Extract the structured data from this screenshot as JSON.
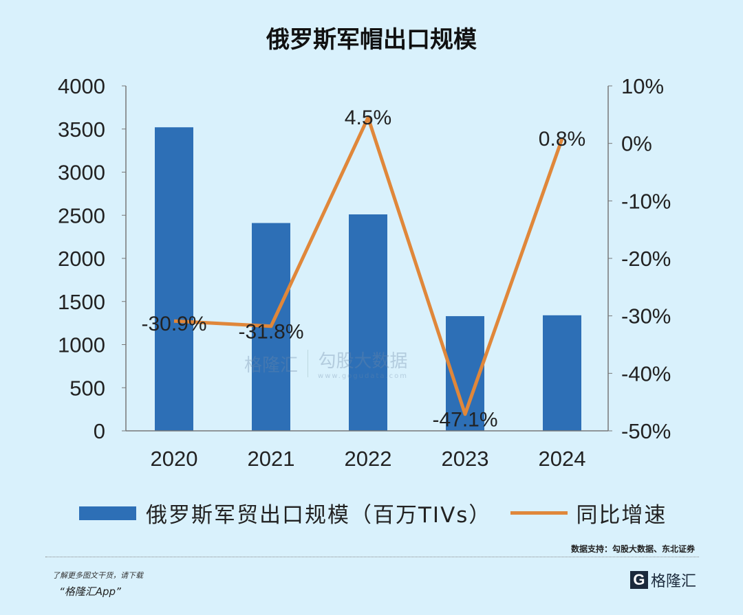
{
  "title": "俄罗斯军帽出口规模",
  "chart_data": {
    "type": "bar+line",
    "categories": [
      "2020",
      "2021",
      "2022",
      "2023",
      "2024"
    ],
    "series": [
      {
        "name": "俄罗斯军贸出口规模（百万TIVs）",
        "type": "bar",
        "axis": "left",
        "values": [
          3520,
          2410,
          2510,
          1330,
          1340
        ],
        "color": "#2d6fb6"
      },
      {
        "name": "同比增速",
        "type": "line",
        "axis": "right",
        "values": [
          -30.9,
          -31.8,
          4.5,
          -47.1,
          0.8
        ],
        "labels": [
          "-30.9%",
          "-31.8%",
          "4.5%",
          "-47.1%",
          "0.8%"
        ],
        "color": "#e0873a"
      }
    ],
    "left_ylim": [
      0,
      4000
    ],
    "left_ticks": [
      "0",
      "500",
      "1000",
      "1500",
      "2000",
      "2500",
      "3000",
      "3500",
      "4000"
    ],
    "right_ylim": [
      -50,
      10
    ],
    "right_ticks": [
      "-50%",
      "-40%",
      "-30%",
      "-20%",
      "-10%",
      "0%",
      "10%"
    ],
    "legend": "bottom",
    "grid": false
  },
  "source": "数据支持：勾股大数据、东北证券",
  "watermark": {
    "brand": "格隆汇",
    "brand2": "勾股大数据",
    "url": "www.gogudata.com"
  },
  "footer": {
    "promo_line1": "了解更多图文干货，请下载",
    "promo_line2": "“格隆汇App”",
    "logo": "格隆汇"
  }
}
